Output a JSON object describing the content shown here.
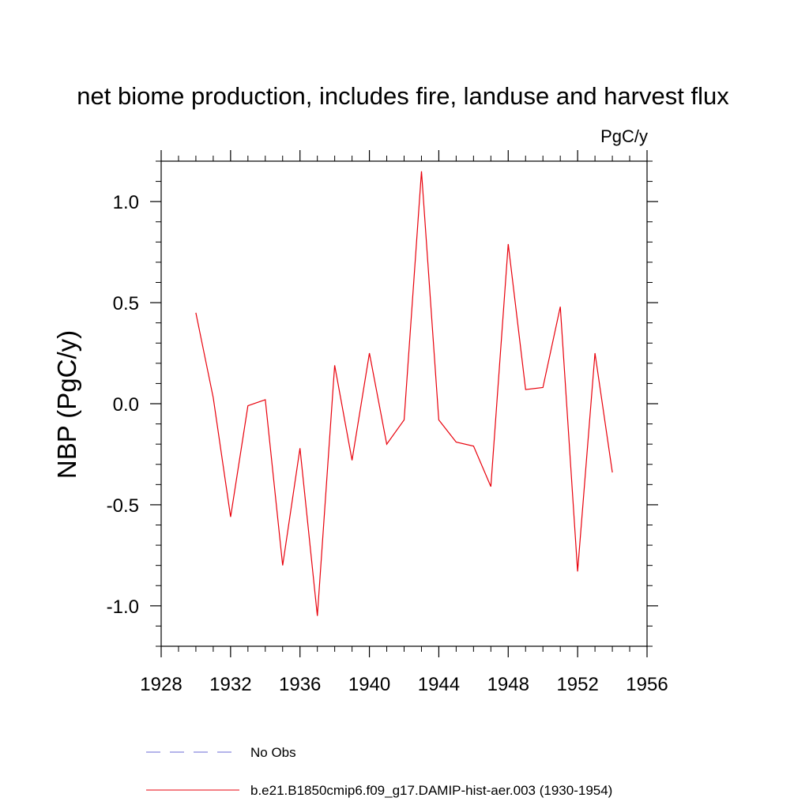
{
  "chart_data": {
    "type": "line",
    "title": "net biome production, includes fire, landuse and harvest flux",
    "units": "PgC/y",
    "xlabel": "",
    "ylabel": "NBP  (PgC/y)",
    "xlim": [
      1928,
      1956
    ],
    "ylim": [
      -1.2,
      1.2
    ],
    "x_ticks": [
      1928,
      1932,
      1936,
      1940,
      1944,
      1948,
      1952,
      1956
    ],
    "x_tick_labels": [
      "1928",
      "1932",
      "1936",
      "1940",
      "1944",
      "1948",
      "1952",
      "1956"
    ],
    "y_ticks": [
      -1.0,
      -0.5,
      0.0,
      0.5,
      1.0
    ],
    "y_tick_labels": [
      "-1.0",
      "-0.5",
      "0.0",
      "0.5",
      "1.0"
    ],
    "grid": false,
    "legend_placement": "bottom",
    "series": [
      {
        "name": "b.e21.B1850cmip6.f09_g17.DAMIP-hist-aer.003 (1930-1954)",
        "color": "#e8000b",
        "style": "solid",
        "x": [
          1930,
          1931,
          1932,
          1933,
          1934,
          1935,
          1936,
          1937,
          1938,
          1939,
          1940,
          1941,
          1942,
          1943,
          1944,
          1945,
          1946,
          1947,
          1948,
          1949,
          1950,
          1951,
          1952,
          1953,
          1954
        ],
        "y": [
          0.45,
          0.03,
          -0.56,
          -0.01,
          0.02,
          -0.8,
          -0.22,
          -1.05,
          0.19,
          -0.28,
          0.25,
          -0.2,
          -0.08,
          1.15,
          -0.08,
          -0.19,
          -0.21,
          -0.41,
          0.79,
          0.07,
          0.08,
          0.48,
          -0.83,
          0.25,
          -0.34
        ]
      }
    ],
    "legend": [
      {
        "label": "No Obs",
        "color": "#6b6bd6",
        "style": "dashed"
      },
      {
        "label": "b.e21.B1850cmip6.f09_g17.DAMIP-hist-aer.003 (1930-1954)",
        "color": "#e8000b",
        "style": "solid"
      }
    ]
  }
}
